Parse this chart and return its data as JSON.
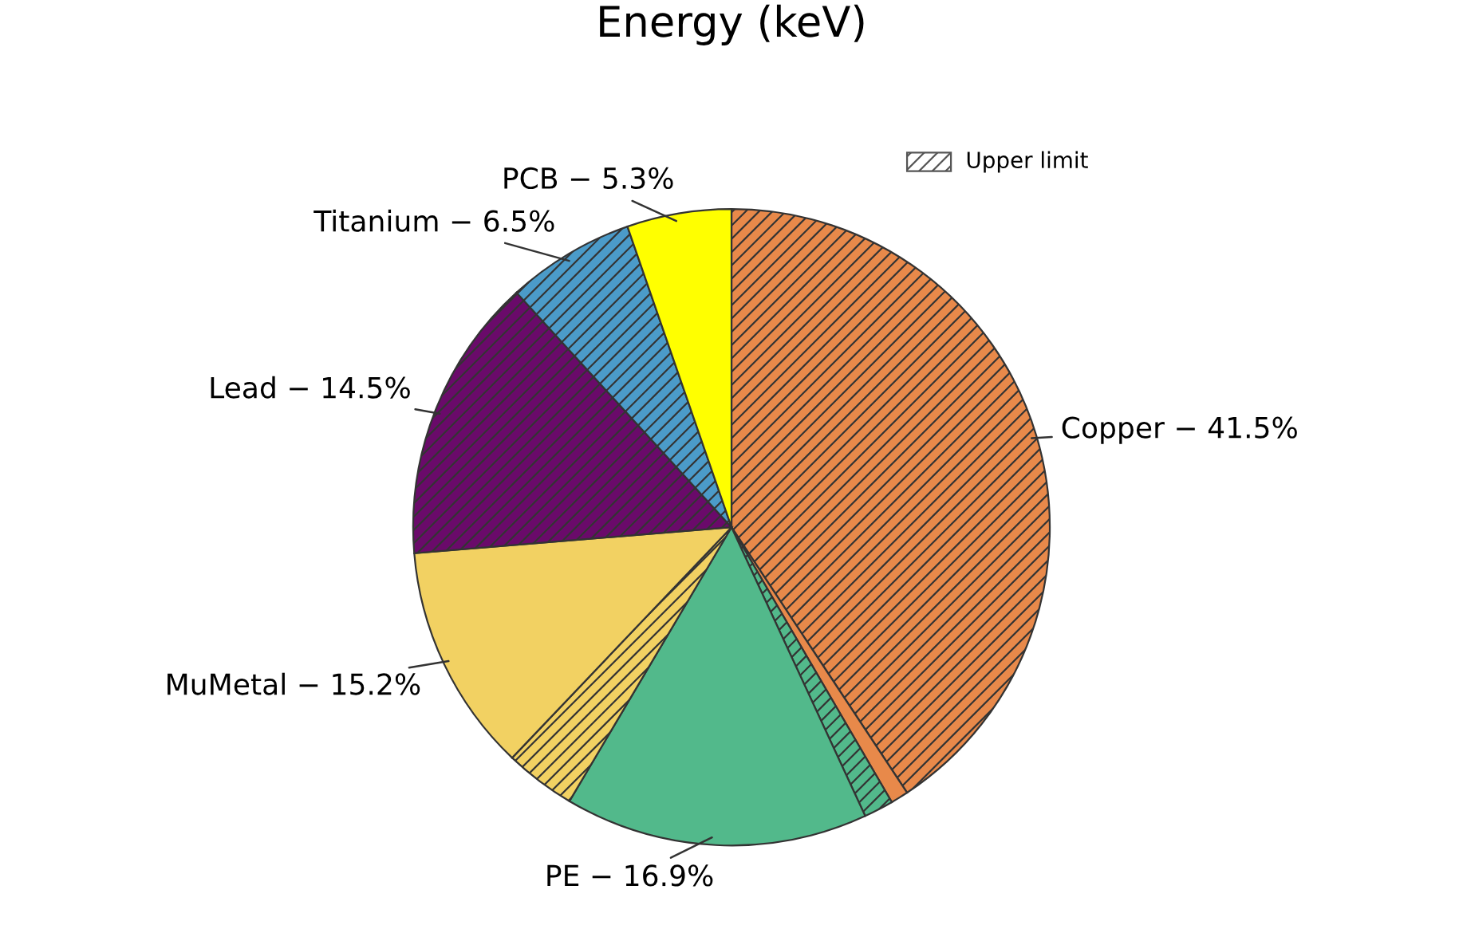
{
  "chart_data": {
    "type": "pie",
    "title": "Energy (keV)",
    "categories": [
      "Copper − 41.5%",
      null,
      null,
      "PE − 16.9%",
      null,
      "MuMetal − 15.2%",
      "Lead − 14.5%",
      "Titanium − 6.5%",
      "PCB − 5.3%"
    ],
    "values": [
      40.7,
      0.9,
      1.5,
      15.4,
      3.6,
      11.6,
      14.5,
      6.5,
      5.3
    ],
    "colors": [
      "#e8894a",
      "#e8894a",
      "#52b98b",
      "#52b98b",
      "#f2d162",
      "#f2d162",
      "#6a0a6a",
      "#4b9bc9",
      "#ffff00"
    ],
    "annotations": [
      "Upper limit"
    ]
  }
}
